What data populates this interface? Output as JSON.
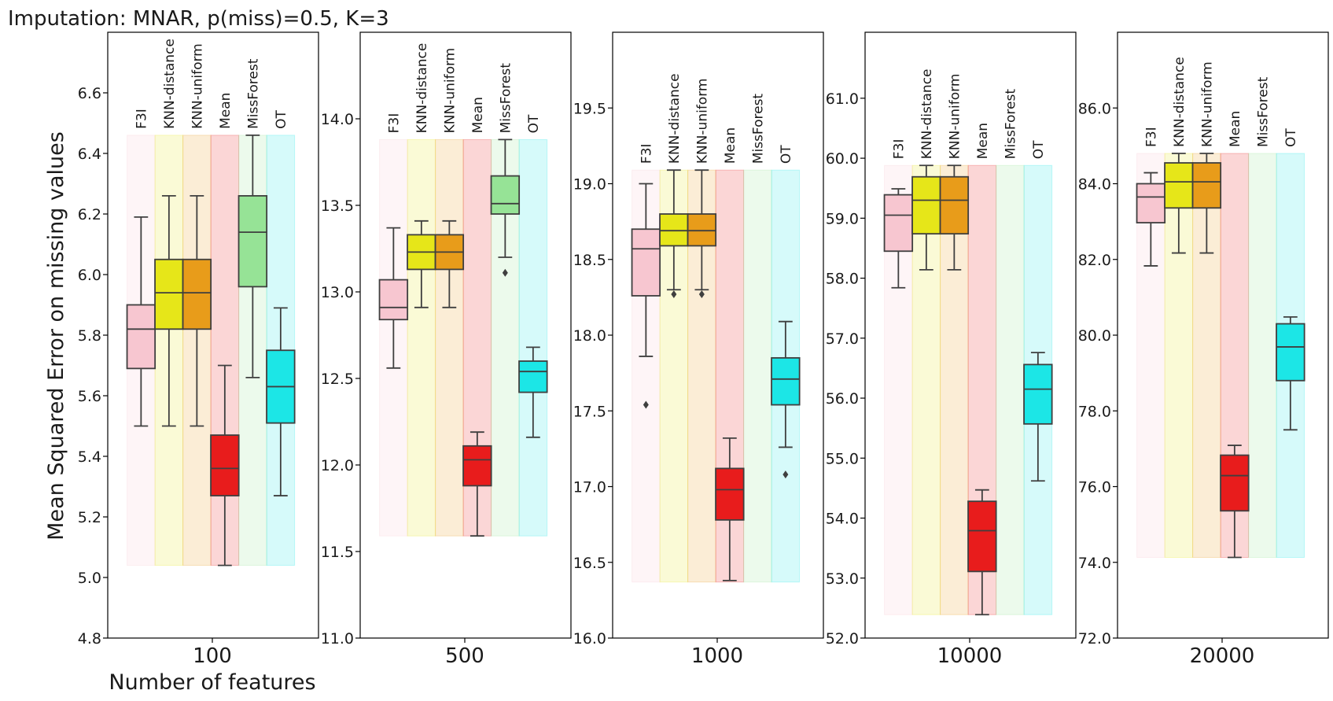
{
  "title": "Imputation: MNAR, p(miss)=0.5, K=3",
  "ylabel": "Mean Squared Error on missing values",
  "xlabel": "Number of features",
  "methods": [
    "F3I",
    "KNN-distance",
    "KNN-uniform",
    "Mean",
    "MissForest",
    "OT"
  ],
  "colors": {
    "F3I": "#f7c6d0",
    "KNN-distance": "#e6e619",
    "KNN-uniform": "#e89c1a",
    "Mean": "#e81c1c",
    "MissForest": "#96e396",
    "OT": "#1ce6e6",
    "frame": "#000000",
    "whisker": "#3f3f3f"
  },
  "chart_data": [
    {
      "type": "box",
      "category": "100",
      "ylim": [
        4.8,
        6.8
      ],
      "yticks": [
        "4.8",
        "5.0",
        "5.2",
        "5.4",
        "5.6",
        "5.8",
        "6.0",
        "6.2",
        "6.4",
        "6.6"
      ],
      "band_range": [
        5.04,
        6.46
      ],
      "boxes": [
        {
          "method": "F3I",
          "wlo": 5.5,
          "q1": 5.69,
          "median": 5.82,
          "q3": 5.9,
          "whi": 6.19,
          "outliers": []
        },
        {
          "method": "KNN-distance",
          "wlo": 5.5,
          "q1": 5.82,
          "median": 5.94,
          "q3": 6.05,
          "whi": 6.26,
          "outliers": []
        },
        {
          "method": "KNN-uniform",
          "wlo": 5.5,
          "q1": 5.82,
          "median": 5.94,
          "q3": 6.05,
          "whi": 6.26,
          "outliers": []
        },
        {
          "method": "Mean",
          "wlo": 5.04,
          "q1": 5.27,
          "median": 5.36,
          "q3": 5.47,
          "whi": 5.7,
          "outliers": []
        },
        {
          "method": "MissForest",
          "wlo": 5.66,
          "q1": 5.96,
          "median": 6.14,
          "q3": 6.26,
          "whi": 6.46,
          "outliers": []
        },
        {
          "method": "OT",
          "wlo": 5.27,
          "q1": 5.51,
          "median": 5.63,
          "q3": 5.75,
          "whi": 5.89,
          "outliers": []
        }
      ]
    },
    {
      "type": "box",
      "category": "500",
      "ylim": [
        11.0,
        14.5
      ],
      "yticks": [
        "11.0",
        "11.5",
        "12.0",
        "12.5",
        "13.0",
        "13.5",
        "14.0"
      ],
      "band_range": [
        11.59,
        13.88
      ],
      "boxes": [
        {
          "method": "F3I",
          "wlo": 12.56,
          "q1": 12.84,
          "median": 12.91,
          "q3": 13.07,
          "whi": 13.37,
          "outliers": []
        },
        {
          "method": "KNN-distance",
          "wlo": 12.91,
          "q1": 13.13,
          "median": 13.23,
          "q3": 13.33,
          "whi": 13.41,
          "outliers": []
        },
        {
          "method": "KNN-uniform",
          "wlo": 12.91,
          "q1": 13.13,
          "median": 13.23,
          "q3": 13.33,
          "whi": 13.41,
          "outliers": []
        },
        {
          "method": "Mean",
          "wlo": 11.59,
          "q1": 11.88,
          "median": 12.03,
          "q3": 12.11,
          "whi": 12.19,
          "outliers": []
        },
        {
          "method": "MissForest",
          "wlo": 13.2,
          "q1": 13.45,
          "median": 13.51,
          "q3": 13.67,
          "whi": 13.88,
          "outliers": [
            13.11
          ]
        },
        {
          "method": "OT",
          "wlo": 12.16,
          "q1": 12.42,
          "median": 12.54,
          "q3": 12.6,
          "whi": 12.68,
          "outliers": []
        }
      ]
    },
    {
      "type": "box",
      "category": "1000",
      "ylim": [
        16.0,
        20.0
      ],
      "yticks": [
        "16.0",
        "16.5",
        "17.0",
        "17.5",
        "18.0",
        "18.5",
        "19.0",
        "19.5"
      ],
      "band_range": [
        16.37,
        19.09
      ],
      "boxes": [
        {
          "method": "F3I",
          "wlo": 17.86,
          "q1": 18.26,
          "median": 18.57,
          "q3": 18.7,
          "whi": 19.0,
          "outliers": [
            17.54
          ]
        },
        {
          "method": "KNN-distance",
          "wlo": 18.3,
          "q1": 18.59,
          "median": 18.69,
          "q3": 18.8,
          "whi": 19.09,
          "outliers": [
            18.27
          ]
        },
        {
          "method": "KNN-uniform",
          "wlo": 18.3,
          "q1": 18.59,
          "median": 18.69,
          "q3": 18.8,
          "whi": 19.09,
          "outliers": [
            18.27
          ]
        },
        {
          "method": "Mean",
          "wlo": 16.38,
          "q1": 16.78,
          "median": 16.98,
          "q3": 17.12,
          "whi": 17.32,
          "outliers": []
        },
        {
          "method": "MissForest",
          "wlo": null,
          "q1": null,
          "median": null,
          "q3": null,
          "whi": null,
          "outliers": []
        },
        {
          "method": "OT",
          "wlo": 17.26,
          "q1": 17.54,
          "median": 17.71,
          "q3": 17.85,
          "whi": 18.09,
          "outliers": [
            17.08
          ]
        }
      ]
    },
    {
      "type": "box",
      "category": "10000",
      "ylim": [
        52.0,
        62.1
      ],
      "yticks": [
        "52.0",
        "53.0",
        "54.0",
        "55.0",
        "56.0",
        "57.0",
        "58.0",
        "59.0",
        "60.0",
        "61.0"
      ],
      "band_range": [
        52.39,
        59.88
      ],
      "boxes": [
        {
          "method": "F3I",
          "wlo": 57.84,
          "q1": 58.45,
          "median": 59.05,
          "q3": 59.39,
          "whi": 59.49,
          "outliers": []
        },
        {
          "method": "KNN-distance",
          "wlo": 58.14,
          "q1": 58.74,
          "median": 59.3,
          "q3": 59.69,
          "whi": 59.88,
          "outliers": []
        },
        {
          "method": "KNN-uniform",
          "wlo": 58.14,
          "q1": 58.74,
          "median": 59.3,
          "q3": 59.69,
          "whi": 59.88,
          "outliers": []
        },
        {
          "method": "Mean",
          "wlo": 52.39,
          "q1": 53.11,
          "median": 53.79,
          "q3": 54.28,
          "whi": 54.47,
          "outliers": []
        },
        {
          "method": "MissForest",
          "wlo": null,
          "q1": null,
          "median": null,
          "q3": null,
          "whi": null,
          "outliers": []
        },
        {
          "method": "OT",
          "wlo": 54.62,
          "q1": 55.57,
          "median": 56.15,
          "q3": 56.56,
          "whi": 56.76,
          "outliers": []
        }
      ]
    },
    {
      "type": "box",
      "category": "20000",
      "ylim": [
        72.0,
        88.0
      ],
      "yticks": [
        "72.0",
        "74.0",
        "76.0",
        "78.0",
        "80.0",
        "82.0",
        "84.0",
        "86.0"
      ],
      "band_range": [
        74.13,
        84.8
      ],
      "boxes": [
        {
          "method": "F3I",
          "wlo": 81.83,
          "q1": 82.97,
          "median": 83.65,
          "q3": 84.0,
          "whi": 84.29,
          "outliers": []
        },
        {
          "method": "KNN-distance",
          "wlo": 82.17,
          "q1": 83.36,
          "median": 84.05,
          "q3": 84.55,
          "whi": 84.8,
          "outliers": []
        },
        {
          "method": "KNN-uniform",
          "wlo": 82.17,
          "q1": 83.36,
          "median": 84.05,
          "q3": 84.55,
          "whi": 84.8,
          "outliers": []
        },
        {
          "method": "Mean",
          "wlo": 74.13,
          "q1": 75.36,
          "median": 76.29,
          "q3": 76.83,
          "whi": 77.09,
          "outliers": []
        },
        {
          "method": "MissForest",
          "wlo": null,
          "q1": null,
          "median": null,
          "q3": null,
          "whi": null,
          "outliers": []
        },
        {
          "method": "OT",
          "wlo": 77.5,
          "q1": 78.8,
          "median": 79.69,
          "q3": 80.3,
          "whi": 80.48,
          "outliers": []
        }
      ]
    }
  ]
}
